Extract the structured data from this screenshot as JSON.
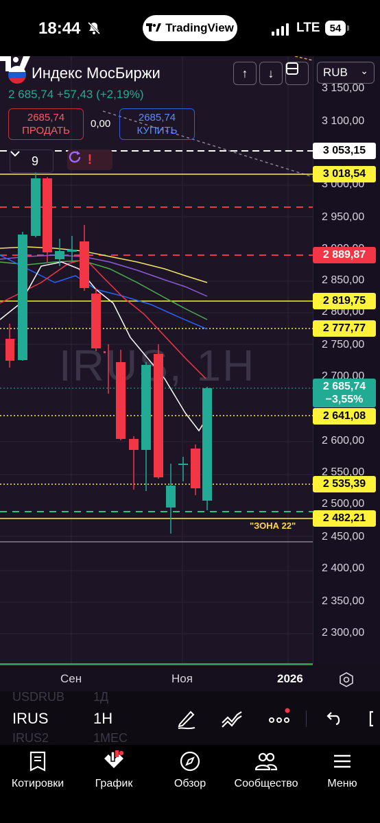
{
  "status_bar": {
    "time": "18:44",
    "app_pill": "TradingView",
    "network": "LTE",
    "battery": "54"
  },
  "header": {
    "instrument_name": "Индекс МосБиржи",
    "price_line": "2 685,74 +57,43 (+2,19%)",
    "sell_price": "2685,74",
    "sell_label": "ПРОДАТЬ",
    "spread": "0,00",
    "buy_price": "2685,74",
    "buy_label": "КУПИТЬ",
    "currency": "RUB",
    "indicators_count": "9"
  },
  "price_axis": {
    "ticks": [
      "3 150,00",
      "3 100,00",
      "3 000,00",
      "2 950,00",
      "2 900,00",
      "2 850,00",
      "2 800,00",
      "2 750,00",
      "2 700,00",
      "2 600,00",
      "2 550,00",
      "2 500,00",
      "2 450,00",
      "2 400,00",
      "2 350,00",
      "2 300,00"
    ],
    "labels": {
      "l3053": "3 053,15",
      "l3018": "3 018,54",
      "l2889": "2 889,87",
      "l2819": "2 819,75",
      "l2777": "2 777,77",
      "l2685_price": "2 685,74",
      "l2685_change": "−3,55%",
      "l2641": "2 641,08",
      "l2535": "2 535,39",
      "l2482": "2 482,21"
    }
  },
  "chart": {
    "watermark": "IRUS, 1H",
    "zone_label": "\"ЗОНА 22\""
  },
  "time_axis": {
    "labels": [
      "Сен",
      "Ноя",
      "2026"
    ]
  },
  "toolbar": {
    "symbol": "IRUS",
    "timeframe": "1H",
    "ghost_symbol_1": "USDRUB",
    "ghost_tf_1": "1Д",
    "ghost_symbol_2": "IRUS2",
    "ghost_tf_2": "1МЕС"
  },
  "bottom_nav": [
    {
      "label": "Котировки",
      "icon": "watchlist-icon"
    },
    {
      "label": "График",
      "icon": "chart-icon"
    },
    {
      "label": "Обзор",
      "icon": "compass-icon"
    },
    {
      "label": "Сообщество",
      "icon": "community-icon"
    },
    {
      "label": "Меню",
      "icon": "menu-icon"
    }
  ],
  "colors": {
    "up": "#22ab94",
    "down": "#f23645",
    "level_yellow": "#fff23a",
    "accent_blue": "#2962ff"
  }
}
